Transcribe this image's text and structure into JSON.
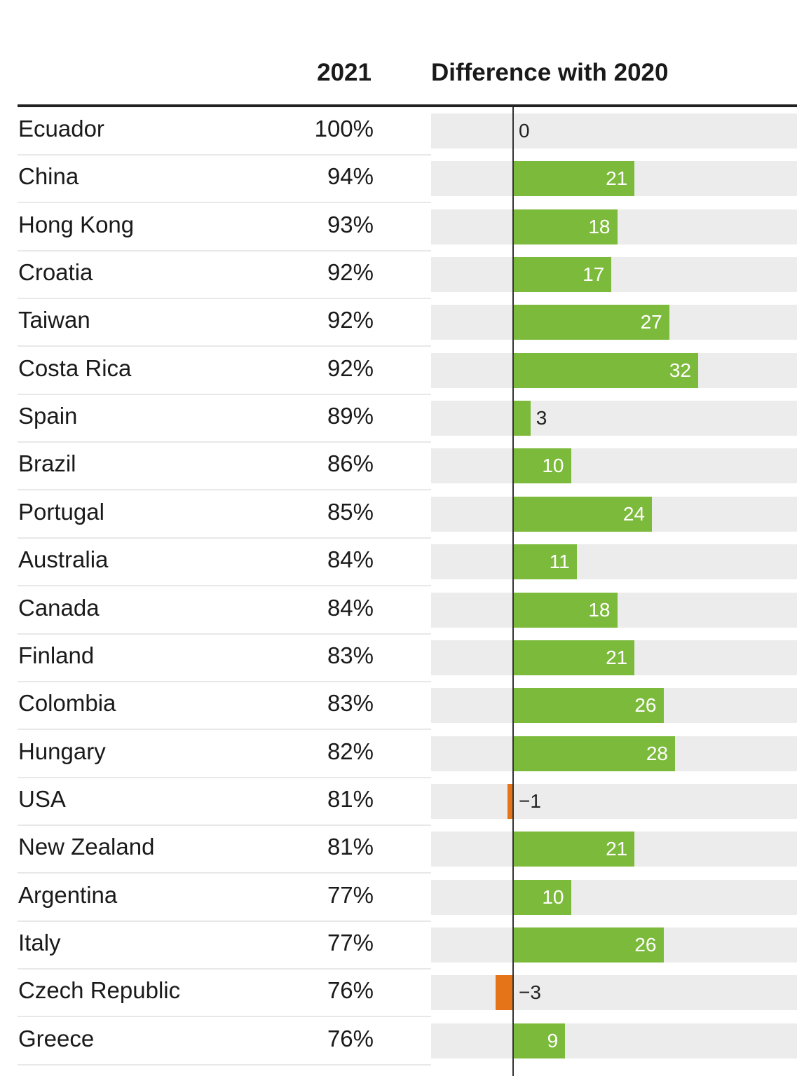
{
  "chart_data": {
    "type": "table",
    "columns": [
      "2021",
      "Difference with 2020"
    ],
    "rows": [
      {
        "country": "Ecuador",
        "pct": "100%",
        "diff": 0,
        "diff_label": "0"
      },
      {
        "country": "China",
        "pct": "94%",
        "diff": 21,
        "diff_label": "21"
      },
      {
        "country": "Hong Kong",
        "pct": "93%",
        "diff": 18,
        "diff_label": "18"
      },
      {
        "country": "Croatia",
        "pct": "92%",
        "diff": 17,
        "diff_label": "17"
      },
      {
        "country": "Taiwan",
        "pct": "92%",
        "diff": 27,
        "diff_label": "27"
      },
      {
        "country": "Costa Rica",
        "pct": "92%",
        "diff": 32,
        "diff_label": "32"
      },
      {
        "country": "Spain",
        "pct": "89%",
        "diff": 3,
        "diff_label": "3"
      },
      {
        "country": "Brazil",
        "pct": "86%",
        "diff": 10,
        "diff_label": "10"
      },
      {
        "country": "Portugal",
        "pct": "85%",
        "diff": 24,
        "diff_label": "24"
      },
      {
        "country": "Australia",
        "pct": "84%",
        "diff": 11,
        "diff_label": "11"
      },
      {
        "country": "Canada",
        "pct": "84%",
        "diff": 18,
        "diff_label": "18"
      },
      {
        "country": "Finland",
        "pct": "83%",
        "diff": 21,
        "diff_label": "21"
      },
      {
        "country": "Colombia",
        "pct": "83%",
        "diff": 26,
        "diff_label": "26"
      },
      {
        "country": "Hungary",
        "pct": "82%",
        "diff": 28,
        "diff_label": "28"
      },
      {
        "country": "USA",
        "pct": "81%",
        "diff": -1,
        "diff_label": "−1"
      },
      {
        "country": "New Zealand",
        "pct": "81%",
        "diff": 21,
        "diff_label": "21"
      },
      {
        "country": "Argentina",
        "pct": "77%",
        "diff": 10,
        "diff_label": "10"
      },
      {
        "country": "Italy",
        "pct": "77%",
        "diff": 26,
        "diff_label": "26"
      },
      {
        "country": "Czech Republic",
        "pct": "76%",
        "diff": -3,
        "diff_label": "−3"
      },
      {
        "country": "Greece",
        "pct": "76%",
        "diff": 9,
        "diff_label": "9"
      }
    ],
    "diff_range": [
      -14,
      50
    ],
    "colors": {
      "positive": "#7cba3b",
      "negative": "#e57317",
      "track": "#ececec"
    }
  }
}
